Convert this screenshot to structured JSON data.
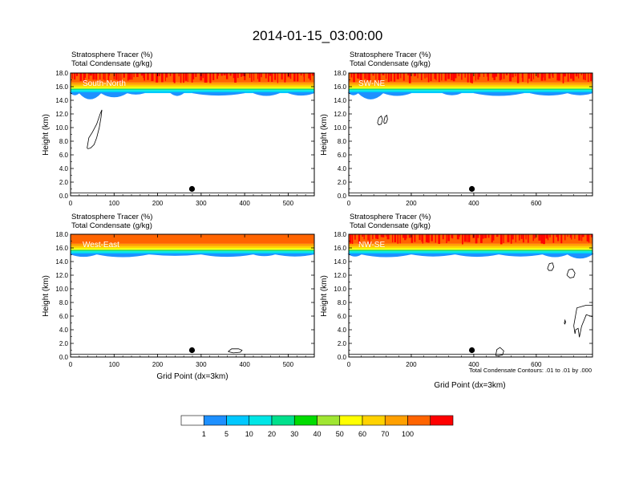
{
  "title": "2014-01-15_03:00:00",
  "panel_header": {
    "line1": "Stratosphere Tracer   (%)",
    "line2": "Total Condensate   (g/kg)"
  },
  "ylabel": "Height (km)",
  "xlabel": "Grid Point (dx=3km)",
  "contour_note": "Total Condensate Contours: .01 to .01 by .000",
  "colorbar": {
    "colors": [
      "#ffffff",
      "#1e90ff",
      "#00c8ff",
      "#00e6e6",
      "#00e08c",
      "#00dc00",
      "#a0e632",
      "#ffff00",
      "#ffd200",
      "#ffa000",
      "#ff6400",
      "#ff0000"
    ],
    "labels": [
      "1",
      "5",
      "10",
      "20",
      "30",
      "40",
      "50",
      "60",
      "70",
      "100"
    ]
  },
  "chart_data": [
    {
      "type": "heatmap",
      "name": "South-North",
      "xlim": [
        0,
        560
      ],
      "ylim": [
        0,
        18
      ],
      "x_ticks": [
        "0",
        "100",
        "200",
        "300",
        "400",
        "500"
      ],
      "x_tick_values": [
        0,
        100,
        200,
        300,
        400,
        500
      ],
      "y_ticks": [
        "0.0",
        "2.0",
        "4.0",
        "6.0",
        "8.0",
        "10.0",
        "12.0",
        "14.0",
        "16.0",
        "18.0"
      ],
      "y_tick_values": [
        0,
        2,
        4,
        6,
        8,
        10,
        12,
        14,
        16,
        18
      ],
      "marker_x": 279,
      "marker_height": 1.0,
      "tracer_top_noisy": true,
      "blue_dips": [
        [
          0,
          20,
          0.3
        ],
        [
          20,
          70,
          0.9
        ],
        [
          70,
          130,
          0.6
        ],
        [
          130,
          170,
          0.2
        ],
        [
          230,
          260,
          0.4
        ],
        [
          280,
          400,
          0.35
        ],
        [
          420,
          480,
          0.4
        ],
        [
          500,
          560,
          0.35
        ]
      ],
      "contours": [
        {
          "x": [
            38,
            42,
            50,
            60,
            68,
            72,
            70,
            66,
            60,
            54,
            46,
            40,
            38
          ],
          "y": [
            7.0,
            8.5,
            9.3,
            10.5,
            12.0,
            12.6,
            11.5,
            10.0,
            8.5,
            7.5,
            7.0,
            6.9,
            7.0
          ]
        }
      ]
    },
    {
      "type": "heatmap",
      "name": "SW-NE",
      "xlim": [
        0,
        780
      ],
      "ylim": [
        0,
        18
      ],
      "x_ticks": [
        "0",
        "200",
        "400",
        "600"
      ],
      "x_tick_values": [
        0,
        200,
        400,
        600
      ],
      "y_ticks": [
        "0.0",
        "2.0",
        "4.0",
        "6.0",
        "8.0",
        "10.0",
        "12.0",
        "14.0",
        "16.0",
        "18.0"
      ],
      "y_tick_values": [
        0,
        2,
        4,
        6,
        8,
        10,
        12,
        14,
        16,
        18
      ],
      "marker_x": 394,
      "marker_height": 1.0,
      "tracer_top_noisy": true,
      "blue_dips": [
        [
          0,
          30,
          0.3
        ],
        [
          30,
          110,
          0.9
        ],
        [
          110,
          200,
          0.4
        ],
        [
          300,
          360,
          0.3
        ],
        [
          400,
          560,
          0.4
        ],
        [
          580,
          700,
          0.35
        ],
        [
          700,
          780,
          0.3
        ]
      ],
      "contours": [
        {
          "x": [
            92,
            96,
            104,
            108,
            104,
            96,
            92
          ],
          "y": [
            10.7,
            11.4,
            11.7,
            11.2,
            10.5,
            10.4,
            10.7
          ]
        },
        {
          "x": [
            112,
            116,
            122,
            124,
            120,
            114,
            112
          ],
          "y": [
            10.8,
            11.6,
            11.8,
            11.2,
            10.7,
            10.6,
            10.8
          ]
        }
      ]
    },
    {
      "type": "heatmap",
      "name": "West-East",
      "xlim": [
        0,
        560
      ],
      "ylim": [
        0,
        18
      ],
      "x_ticks": [
        "0",
        "100",
        "200",
        "300",
        "400",
        "500"
      ],
      "x_tick_values": [
        0,
        100,
        200,
        300,
        400,
        500
      ],
      "y_ticks": [
        "0.0",
        "2.0",
        "4.0",
        "6.0",
        "8.0",
        "10.0",
        "12.0",
        "14.0",
        "16.0",
        "18.0"
      ],
      "y_tick_values": [
        0,
        2,
        4,
        6,
        8,
        10,
        12,
        14,
        16,
        18
      ],
      "marker_x": 279,
      "marker_height": 1.0,
      "tracer_top_noisy": false,
      "blue_dips": [
        [
          0,
          60,
          0.35
        ],
        [
          60,
          180,
          0.4
        ],
        [
          180,
          300,
          0.2
        ],
        [
          300,
          420,
          0.35
        ],
        [
          420,
          470,
          0.25
        ],
        [
          470,
          560,
          0.3
        ]
      ],
      "contours": [
        {
          "x": [
            362,
            370,
            386,
            394,
            390,
            374,
            362
          ],
          "y": [
            0.8,
            1.2,
            1.2,
            1.0,
            0.7,
            0.6,
            0.8
          ]
        }
      ]
    },
    {
      "type": "heatmap",
      "name": "NW-SE",
      "xlim": [
        0,
        780
      ],
      "ylim": [
        0,
        18
      ],
      "x_ticks": [
        "0",
        "200",
        "400",
        "600"
      ],
      "x_tick_values": [
        0,
        200,
        400,
        600
      ],
      "y_ticks": [
        "0.0",
        "2.0",
        "4.0",
        "6.0",
        "8.0",
        "10.0",
        "12.0",
        "14.0",
        "16.0",
        "18.0"
      ],
      "y_tick_values": [
        0,
        2,
        4,
        6,
        8,
        10,
        12,
        14,
        16,
        18
      ],
      "marker_x": 394,
      "marker_height": 1.0,
      "tracer_top_noisy": true,
      "blue_dips": [
        [
          0,
          40,
          0.3
        ],
        [
          40,
          200,
          0.4
        ],
        [
          200,
          340,
          0.3
        ],
        [
          340,
          480,
          0.35
        ],
        [
          480,
          620,
          0.3
        ],
        [
          620,
          700,
          0.4
        ],
        [
          700,
          780,
          0.6
        ]
      ],
      "contours": [
        {
          "x": [
            636,
            642,
            652,
            656,
            650,
            640,
            636
          ],
          "y": [
            13.0,
            13.7,
            13.8,
            13.2,
            12.7,
            12.7,
            13.0
          ]
        },
        {
          "x": [
            698,
            704,
            716,
            724,
            720,
            708,
            698
          ],
          "y": [
            12.0,
            12.8,
            12.9,
            12.3,
            11.7,
            11.6,
            12.0
          ]
        },
        {
          "x": [
            720,
            730,
            760,
            780,
            780,
            760,
            745,
            738,
            734,
            726,
            724,
            720
          ],
          "y": [
            4.6,
            7.2,
            7.6,
            7.6,
            5.9,
            6.2,
            4.5,
            2.9,
            4.2,
            4.0,
            3.4,
            4.6
          ]
        },
        {
          "x": [
            691,
            694,
            692,
            690,
            691
          ],
          "y": [
            4.8,
            5.1,
            5.4,
            5.0,
            4.8
          ]
        },
        {
          "x": [
            470,
            474,
            484,
            496,
            492,
            480,
            470
          ],
          "y": [
            0.2,
            1.1,
            1.4,
            0.9,
            0.3,
            0.2,
            0.2
          ]
        }
      ]
    }
  ]
}
